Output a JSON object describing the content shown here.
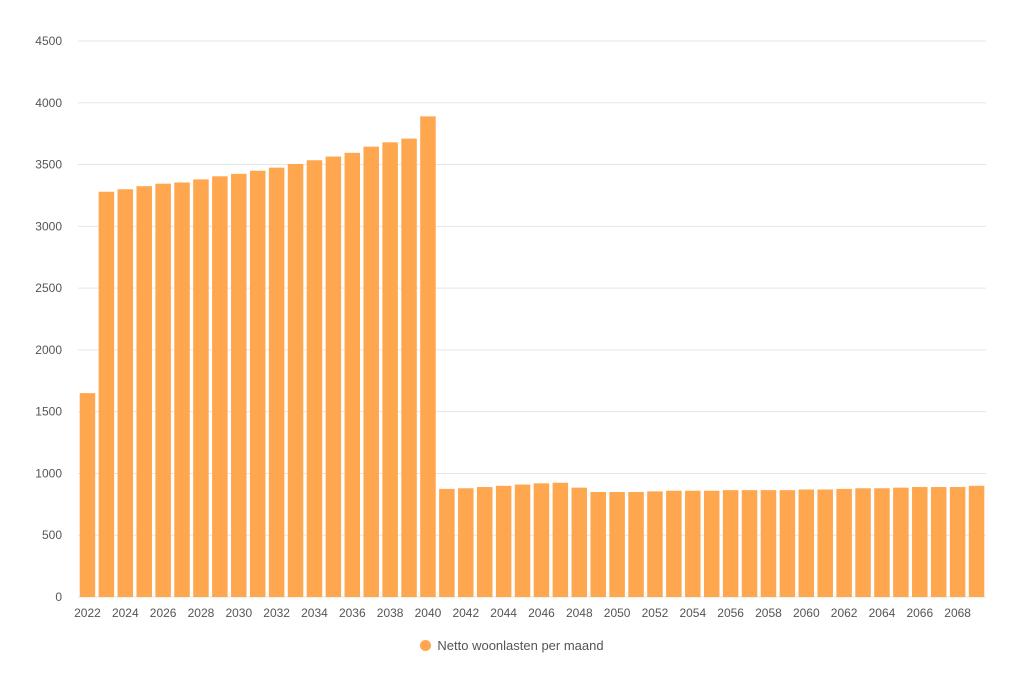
{
  "colors": {
    "bar": "#FFA74F",
    "grid": "#e6e6e6",
    "axis_text": "#555555"
  },
  "chart_data": {
    "type": "bar",
    "xlabel": "",
    "ylabel": "",
    "ylim": [
      0,
      4500
    ],
    "yticks": [
      0,
      500,
      1000,
      1500,
      2000,
      2500,
      3000,
      3500,
      4000,
      4500
    ],
    "grid": true,
    "legend_position": "bottom",
    "categories": [
      "2022",
      "2023",
      "2024",
      "2025",
      "2026",
      "2027",
      "2028",
      "2029",
      "2030",
      "2031",
      "2032",
      "2033",
      "2034",
      "2035",
      "2036",
      "2037",
      "2038",
      "2039",
      "2040",
      "2041",
      "2042",
      "2043",
      "2044",
      "2045",
      "2046",
      "2047",
      "2048",
      "2049",
      "2050",
      "2051",
      "2052",
      "2053",
      "2054",
      "2055",
      "2056",
      "2057",
      "2058",
      "2059",
      "2060",
      "2061",
      "2062",
      "2063",
      "2064",
      "2065",
      "2066",
      "2067",
      "2068",
      "2069"
    ],
    "x_tick_labels": [
      "2022",
      "",
      "2024",
      "",
      "2026",
      "",
      "2028",
      "",
      "2030",
      "",
      "2032",
      "",
      "2034",
      "",
      "2036",
      "",
      "2038",
      "",
      "2040",
      "",
      "2042",
      "",
      "2044",
      "",
      "2046",
      "",
      "2048",
      "",
      "2050",
      "",
      "2052",
      "",
      "2054",
      "",
      "2056",
      "",
      "2058",
      "",
      "2060",
      "",
      "2062",
      "",
      "2064",
      "",
      "2066",
      "",
      "2068",
      ""
    ],
    "series": [
      {
        "name": "Netto woonlasten per maand",
        "values": [
          1650,
          3280,
          3300,
          3325,
          3345,
          3355,
          3380,
          3405,
          3425,
          3450,
          3475,
          3505,
          3535,
          3565,
          3595,
          3645,
          3680,
          3710,
          3890,
          875,
          880,
          890,
          900,
          910,
          920,
          925,
          885,
          850,
          850,
          850,
          855,
          860,
          860,
          860,
          865,
          865,
          865,
          865,
          870,
          870,
          875,
          880,
          880,
          885,
          890,
          890,
          890,
          900
        ]
      }
    ]
  }
}
